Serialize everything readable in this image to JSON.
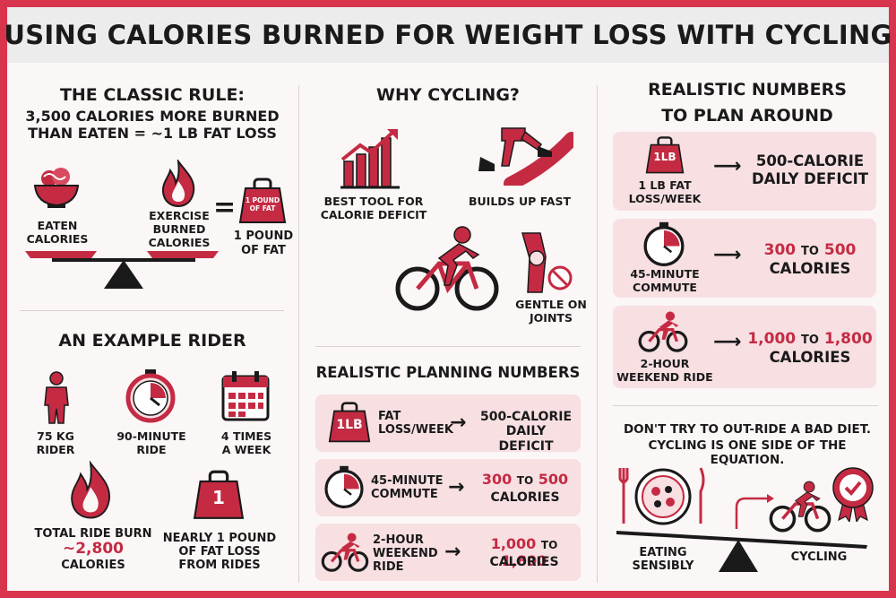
{
  "title": "USING CALORIES BURNED FOR WEIGHT LOSS WITH CYCLING",
  "colors": {
    "accent": "#c42b43",
    "border": "#d9344e",
    "card": "#f7dfe2"
  },
  "classic": {
    "heading": "THE CLASSIC RULE:",
    "rule_line1": "3,500 CALORIES MORE BURNED",
    "rule_line2": "THAN EATEN = ~1 LB FAT LOSS",
    "eaten_line1": "EATEN",
    "eaten_line2": "CALORIES",
    "exercise_line1": "EXERCISE",
    "exercise_line2": "BURNED",
    "exercise_line3": "CALORIES",
    "equals": "=",
    "weight_text1": "1 POUND",
    "weight_text2": "OF FAT",
    "pound_line1": "1 POUND",
    "pound_line2": "OF FAT"
  },
  "example": {
    "heading": "AN EXAMPLE RIDER",
    "rider_line1": "75 KG",
    "rider_line2": "RIDER",
    "ride_line1": "90-MINUTE",
    "ride_line2": "RIDE",
    "times_line1": "4 TIMES",
    "times_line2": "A WEEK",
    "burn_line1": "TOTAL RIDE BURN",
    "burn_value": "~2,800",
    "burn_line3": "CALORIES",
    "weight_number": "1",
    "fat_line1": "NEARLY 1 POUND",
    "fat_line2": "OF FAT LOSS",
    "fat_line3": "FROM RIDES"
  },
  "why": {
    "heading": "WHY CYCLING?",
    "tool_line1": "BEST TOOL FOR",
    "tool_line2": "CALORIE DEFICIT",
    "builds": "BUILDS UP FAST",
    "gentle_line1": "GENTLE ON",
    "gentle_line2": "JOINTS"
  },
  "planning": {
    "heading": "REALISTIC PLANNING NUMBERS",
    "badge": "1LB",
    "row1_left1": "FAT",
    "row1_left2": "LOSS/WEEK",
    "row1_right1": "500-CALORIE",
    "row1_right2": "DAILY DEFICIT",
    "row2_left1": "45-MINUTE",
    "row2_left2": "COMMUTE",
    "row2_low": "300",
    "row2_to": "TO",
    "row2_high": "500",
    "row2_unit": "CALORIES",
    "row3_left1": "2-HOUR",
    "row3_left2": "WEEKEND",
    "row3_left3": "RIDE",
    "row3_low": "1,000",
    "row3_to": "TO",
    "row3_high": "1,800",
    "row3_unit": "CALORIES"
  },
  "realistic": {
    "heading_line1": "REALISTIC NUMBERS",
    "heading_line2": "TO PLAN AROUND",
    "badge": "1LB",
    "row1_left1": "1 LB FAT",
    "row1_left2": "LOSS/WEEK",
    "row1_right1": "500-CALORIE",
    "row1_right2": "DAILY DEFICIT",
    "row2_left1": "45-MINUTE",
    "row2_left2": "COMMUTE",
    "row2_low": "300",
    "row2_to": "TO",
    "row2_high": "500",
    "row2_unit": "CALORIES",
    "row3_left1": "2-HOUR",
    "row3_left2": "WEEKEND RIDE",
    "row3_low": "1,000",
    "row3_to": "TO",
    "row3_high": "1,800",
    "row3_unit": "CALORIES"
  },
  "diet": {
    "line1": "DON'T TRY TO OUT-RIDE A BAD DIET.",
    "line2": "CYCLING IS ONE SIDE OF THE EQUATION.",
    "eating_line1": "EATING",
    "eating_line2": "SENSIBLY",
    "cycling": "CYCLING"
  },
  "icons": [
    "bowl-icon",
    "flame-icon",
    "weight-icon",
    "scale-icon",
    "chart-icon",
    "runner-icon",
    "cyclist-icon",
    "knee-icon",
    "person-icon",
    "stopwatch-icon",
    "calendar-icon",
    "plate-icon",
    "medal-icon"
  ]
}
